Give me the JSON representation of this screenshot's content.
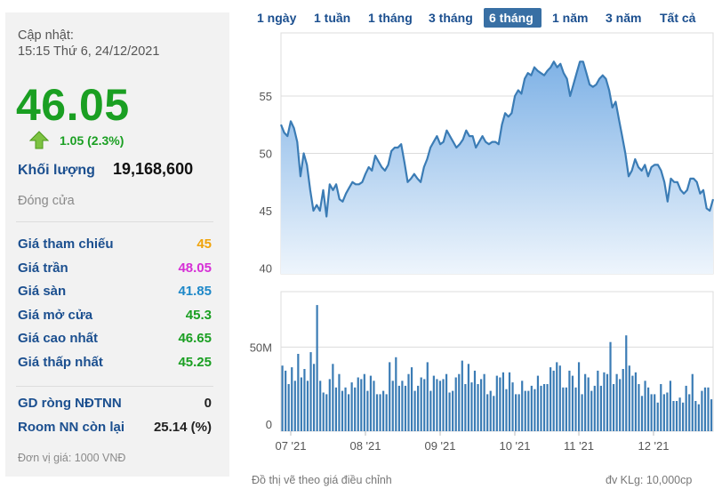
{
  "panel": {
    "update_label": "Cập nhật:",
    "update_time": "15:15 Thứ 6, 24/12/2021",
    "price": "46.05",
    "change": "1.05 (2.3%)",
    "volume_label": "Khối lượng",
    "volume_value": "19,168,600",
    "status": "Đóng cửa",
    "price_rows": [
      {
        "label": "Giá tham chiếu",
        "value": "45",
        "color": "#f0a30a"
      },
      {
        "label": "Giá trần",
        "value": "48.05",
        "color": "#d62fd6"
      },
      {
        "label": "Giá sàn",
        "value": "41.85",
        "color": "#1e88c8"
      },
      {
        "label": "Giá mở cửa",
        "value": "45.3",
        "color": "#1a9f22"
      },
      {
        "label": "Giá cao nhất",
        "value": "46.65",
        "color": "#1a9f22"
      },
      {
        "label": "Giá thấp nhất",
        "value": "45.25",
        "color": "#1a9f22"
      }
    ],
    "foreign_rows": [
      {
        "label": "GD ròng NĐTNN",
        "value": "0",
        "color": "#222222"
      },
      {
        "label": "Room NN còn lại",
        "value": "25.14 (%)",
        "color": "#222222"
      }
    ],
    "unit_note": "Đơn vị giá: 1000 VNĐ"
  },
  "range_tabs": [
    {
      "label": "1 ngày",
      "active": false
    },
    {
      "label": "1 tuần",
      "active": false
    },
    {
      "label": "1 tháng",
      "active": false
    },
    {
      "label": "3 tháng",
      "active": false
    },
    {
      "label": "6 tháng",
      "active": true
    },
    {
      "label": "1 năm",
      "active": false
    },
    {
      "label": "3 năm",
      "active": false
    },
    {
      "label": "Tất cả",
      "active": false
    }
  ],
  "footer": {
    "left_note": "Đồ thị vẽ theo giá điều chỉnh",
    "right_note": "đv KLg: 10,000cp"
  },
  "colors": {
    "line": "#3b7cb5",
    "area_top": "#7fb2e6",
    "area_bottom": "#eef5fc",
    "bar": "#3b7cb5",
    "price_up": "#1a9f22"
  },
  "chart_data": [
    {
      "type": "area",
      "series": [
        {
          "values": [
            52.5,
            51.8,
            51.5,
            52.8,
            52.2,
            51,
            48,
            50,
            49,
            46.8,
            45,
            45.5,
            45,
            46.8,
            44.5,
            47.3,
            46.8,
            47.3,
            46,
            45.8,
            46.5,
            47,
            47.5,
            47.3,
            47.3,
            47.5,
            48.2,
            48.8,
            48.5,
            49.8,
            49.3,
            48.8,
            48.5,
            49,
            50.2,
            50.5,
            50.5,
            50.8,
            49.2,
            47.5,
            47.8,
            48.2,
            47.8,
            47.5,
            48.8,
            49.5,
            50.5,
            51,
            51.5,
            50.8,
            51,
            52,
            51.5,
            51,
            50.5,
            50.8,
            51.2,
            52,
            51.5,
            51.5,
            50.5,
            51,
            51.5,
            51,
            50.8,
            51,
            51,
            50.8,
            52.5,
            53.5,
            53.2,
            53.5,
            55,
            55.5,
            55.2,
            56.5,
            57,
            56.8,
            57.5,
            57.2,
            57,
            56.8,
            57.2,
            57.5,
            58,
            57.5,
            57.8,
            57,
            56.5,
            55,
            56,
            57,
            58,
            58,
            57,
            56,
            55.8,
            56,
            56.5,
            56.8,
            56.5,
            55.5,
            54,
            54.5,
            53,
            51.5,
            50,
            48,
            48.5,
            49.5,
            48.8,
            48.5,
            49,
            48,
            48.8,
            49,
            49,
            48.5,
            47.5,
            45.8,
            47.8,
            47.5,
            47.5,
            46.8,
            46.5,
            46.8,
            47.8,
            47.8,
            47.5,
            46.5,
            46.8,
            45.2,
            45,
            46
          ]
        }
      ],
      "x_ticks": [
        "07 '21",
        "08 '21",
        "09 '21",
        "10 '21",
        "11 '21",
        "12 '21"
      ],
      "y_ticks": [
        40,
        45,
        50,
        55
      ],
      "ylim": [
        39.5,
        60.5
      ],
      "grid": true
    },
    {
      "type": "bar",
      "series": [
        {
          "values": [
            39,
            36,
            28,
            38,
            30,
            46,
            32,
            37,
            30,
            47,
            40,
            75,
            30,
            23,
            22,
            31,
            40,
            26,
            34,
            24,
            26,
            22,
            29,
            26,
            32,
            31,
            34,
            24,
            33,
            30,
            22,
            22,
            24,
            22,
            41,
            30,
            44,
            27,
            30,
            27,
            34,
            38,
            24,
            27,
            32,
            31,
            41,
            24,
            33,
            31,
            30,
            31,
            34,
            23,
            24,
            32,
            34,
            42,
            28,
            40,
            29,
            36,
            28,
            31,
            34,
            22,
            24,
            21,
            33,
            32,
            35,
            25,
            35,
            29,
            22,
            22,
            30,
            24,
            24,
            27,
            25,
            33,
            27,
            28,
            28,
            38,
            36,
            41,
            39,
            26,
            26,
            36,
            33,
            26,
            41,
            22,
            34,
            32,
            24,
            27,
            36,
            27,
            35,
            34,
            53,
            28,
            34,
            31,
            37,
            57,
            39,
            33,
            35,
            28,
            21,
            30,
            26,
            22,
            22,
            17,
            28,
            22,
            23,
            30,
            18,
            18,
            20,
            17,
            27,
            22,
            34,
            18,
            16,
            24,
            26,
            26,
            19
          ]
        }
      ],
      "y_ticks": [
        0,
        50
      ],
      "y_tick_labels": [
        "0",
        "50M"
      ],
      "ylim": [
        0,
        83
      ],
      "grid": true
    }
  ]
}
